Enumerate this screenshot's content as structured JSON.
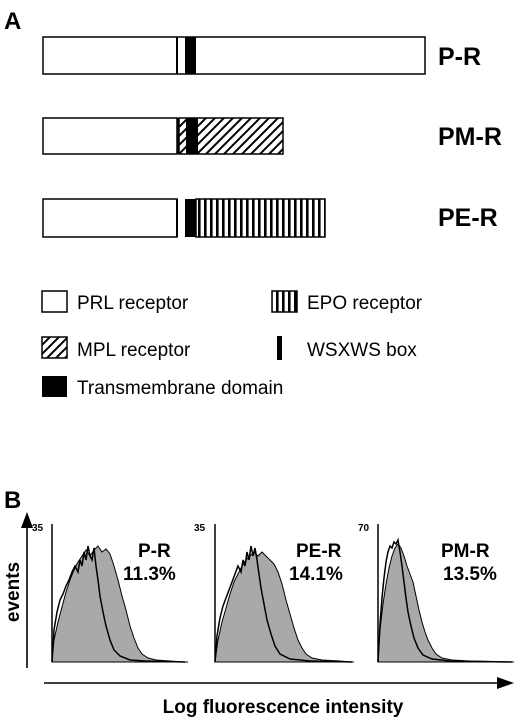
{
  "panels": {
    "a": {
      "label": "A"
    },
    "b": {
      "label": "B"
    }
  },
  "constructs": [
    {
      "label": "P-R",
      "domains": [
        "PRL receptor",
        "WSXWS box",
        "Transmembrane domain",
        "PRL receptor"
      ]
    },
    {
      "label": "PM-R",
      "domains": [
        "PRL receptor",
        "WSXWS box",
        "MPL receptor",
        "Transmembrane domain",
        "MPL receptor"
      ]
    },
    {
      "label": "PE-R",
      "domains": [
        "PRL receptor",
        "WSXWS box",
        "Transmembrane domain",
        "EPO receptor"
      ]
    }
  ],
  "legend": {
    "prl": "PRL receptor",
    "epo": "EPO receptor",
    "mpl": "MPL receptor",
    "wsxws": "WSXWS box",
    "tm": "Transmembrane domain"
  },
  "histograms": {
    "y_axis_label": "events",
    "x_axis_label": "Log fluorescence intensity",
    "plots": [
      {
        "label": "P-R",
        "percent": "11.3%",
        "ymax_label": "35"
      },
      {
        "label": "PE-R",
        "percent": "14.1%",
        "ymax_label": "35"
      },
      {
        "label": "PM-R",
        "percent": "13.5%",
        "ymax_label": "70"
      }
    ]
  },
  "colors": {
    "line": "#000000",
    "fill": "#a9a9a9",
    "background": "#ffffff"
  }
}
